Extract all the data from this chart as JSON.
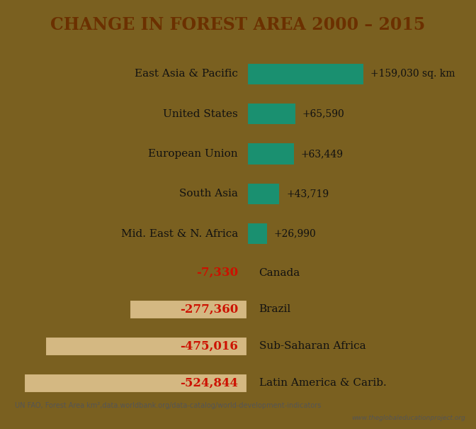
{
  "title": "CHANGE IN FOREST AREA 2000 – 2015",
  "title_color": "#6B3000",
  "title_bg": "#eeecd0",
  "top_bg": "#d8e8b0",
  "bottom_bg": "#c8a878",
  "border_color": "#7a6020",
  "footnote_bg": "#e8e4c8",
  "positive_regions": [
    {
      "label": "East Asia & Pacific",
      "value": 159030,
      "display": "+159,030 sq. km"
    },
    {
      "label": "United States",
      "value": 65590,
      "display": "+65,590"
    },
    {
      "label": "European Union",
      "value": 63449,
      "display": "+63,449"
    },
    {
      "label": "South Asia",
      "value": 43719,
      "display": "+43,719"
    },
    {
      "label": "Mid. East & N. Africa",
      "value": 26990,
      "display": "+26,990"
    }
  ],
  "negative_regions": [
    {
      "label": "Canada",
      "value": -7330,
      "display": "-7,330"
    },
    {
      "label": "Brazil",
      "value": -277360,
      "display": "-277,360"
    },
    {
      "label": "Sub-Saharan Africa",
      "value": -475016,
      "display": "-475,016"
    },
    {
      "label": "Latin America & Carib.",
      "value": -524844,
      "display": "-524,844"
    }
  ],
  "bar_color_pos": "#1a9070",
  "bar_color_neg": "#d4b882",
  "bar_border_neg": "#7a6020",
  "value_color_neg": "#cc1100",
  "label_color": "#111111",
  "footnote": "UN FAO, Forest Area km²,data.worldbank.org/data-catalog/world-development-indicators",
  "footnote2": "www.theglobaleducationproject.org",
  "footnote_color": "#555555"
}
